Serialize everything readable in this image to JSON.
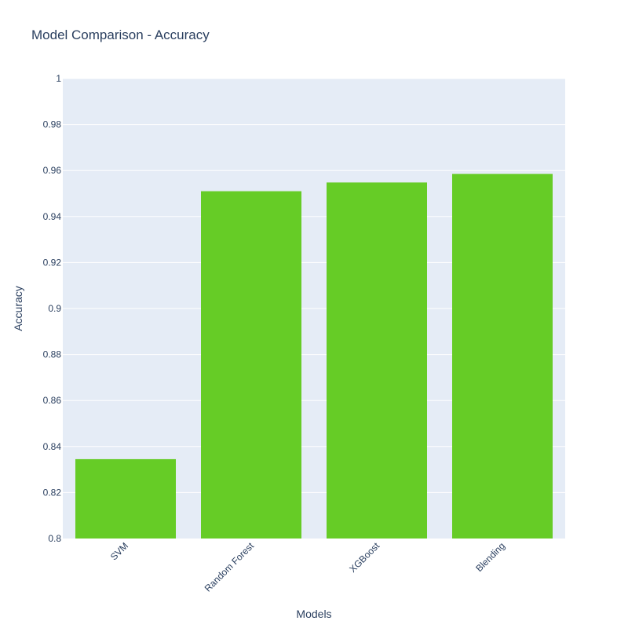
{
  "chart_data": {
    "type": "bar",
    "title": "Model Comparison - Accuracy",
    "xlabel": "Models",
    "ylabel": "Accuracy",
    "categories": [
      "SVM",
      "Random Forest",
      "XGBoost",
      "Blending"
    ],
    "values": [
      0.8345,
      0.951,
      0.9548,
      0.9585
    ],
    "ylim": [
      0.8,
      1
    ],
    "yticks": [
      "0.8",
      "0.82",
      "0.84",
      "0.86",
      "0.88",
      "0.9",
      "0.92",
      "0.94",
      "0.96",
      "0.98",
      "1"
    ],
    "grid": true,
    "legend": "none",
    "bar_color": "#66cc26",
    "plot_bg_color": "#e5ecf6"
  }
}
